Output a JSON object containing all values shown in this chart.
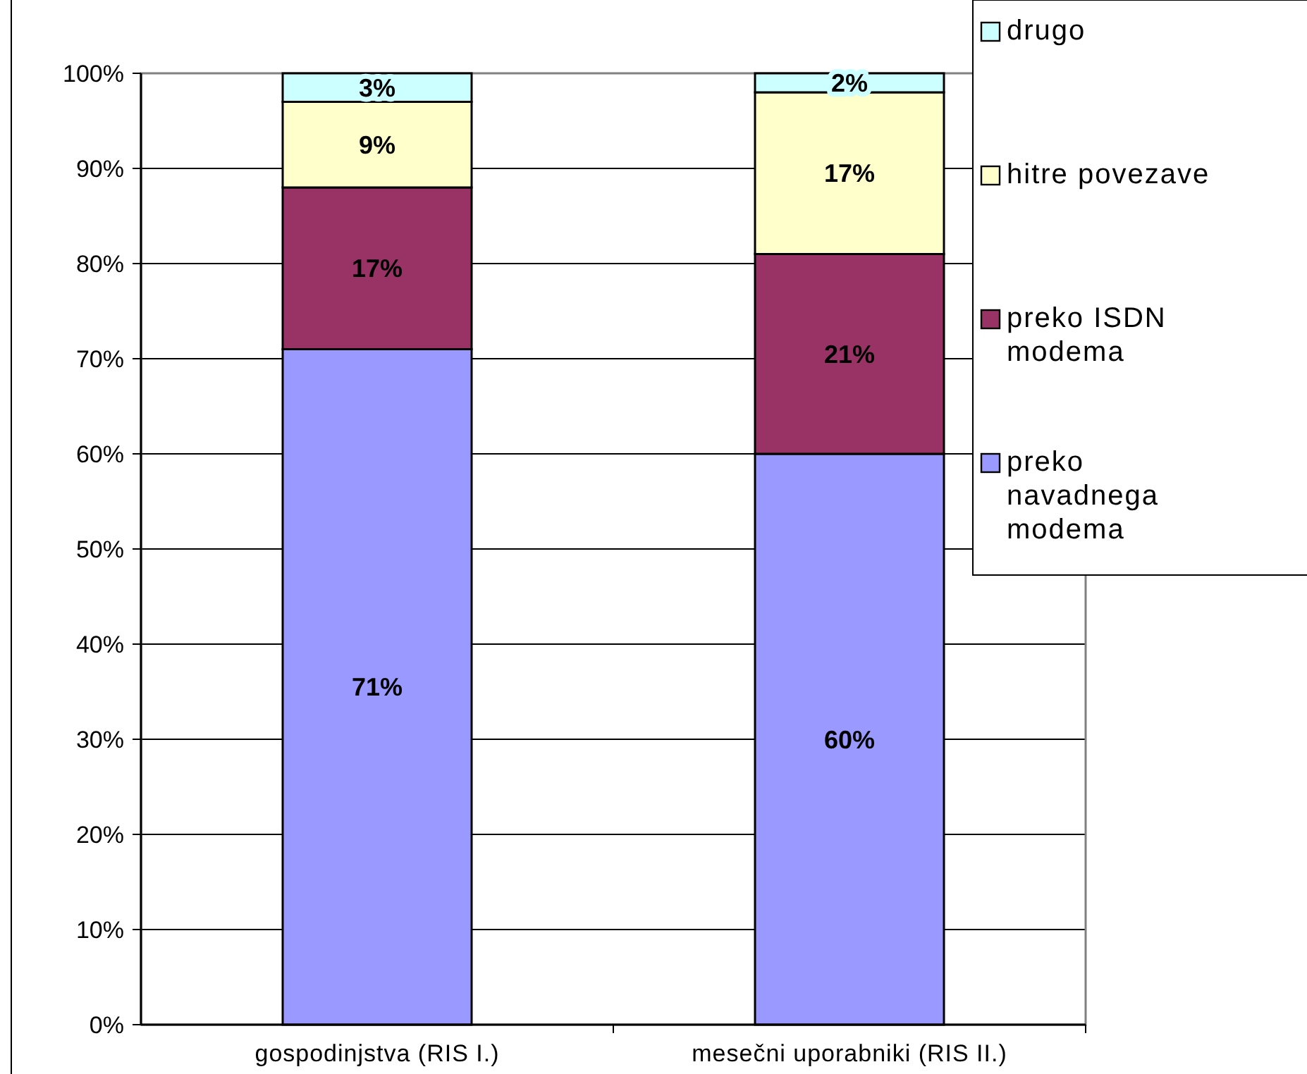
{
  "chart_data": {
    "type": "bar",
    "stacked": true,
    "grid": "y",
    "legend": "top right",
    "categories": [
      "gospodinjstva (RIS I.)",
      "mesečni uporabniki (RIS II.)"
    ],
    "ylim": [
      0,
      100
    ],
    "yticks": [
      {
        "value": 0,
        "label": "0%"
      },
      {
        "value": 10,
        "label": "10%"
      },
      {
        "value": 20,
        "label": "20%"
      },
      {
        "value": 30,
        "label": "30%"
      },
      {
        "value": 40,
        "label": "40%"
      },
      {
        "value": 50,
        "label": "50%"
      },
      {
        "value": 60,
        "label": "60%"
      },
      {
        "value": 70,
        "label": "70%"
      },
      {
        "value": 80,
        "label": "80%"
      },
      {
        "value": 90,
        "label": "90%"
      },
      {
        "value": 100,
        "label": "100%"
      }
    ],
    "series": [
      {
        "name": "preko navadnega modema",
        "color": "#9999ff",
        "values": [
          71,
          60
        ],
        "value_labels": [
          "71%",
          "60%"
        ]
      },
      {
        "name": "preko ISDN modema",
        "color": "#993366",
        "values": [
          17,
          21
        ],
        "value_labels": [
          "17%",
          "21%"
        ]
      },
      {
        "name": "hitre povezave",
        "color": "#ffffcc",
        "values": [
          9,
          17
        ],
        "value_labels": [
          "9%",
          "17%"
        ]
      },
      {
        "name": "drugo",
        "color": "#ccffff",
        "values": [
          3,
          2
        ],
        "value_labels": [
          "3%",
          "2%"
        ]
      }
    ]
  }
}
